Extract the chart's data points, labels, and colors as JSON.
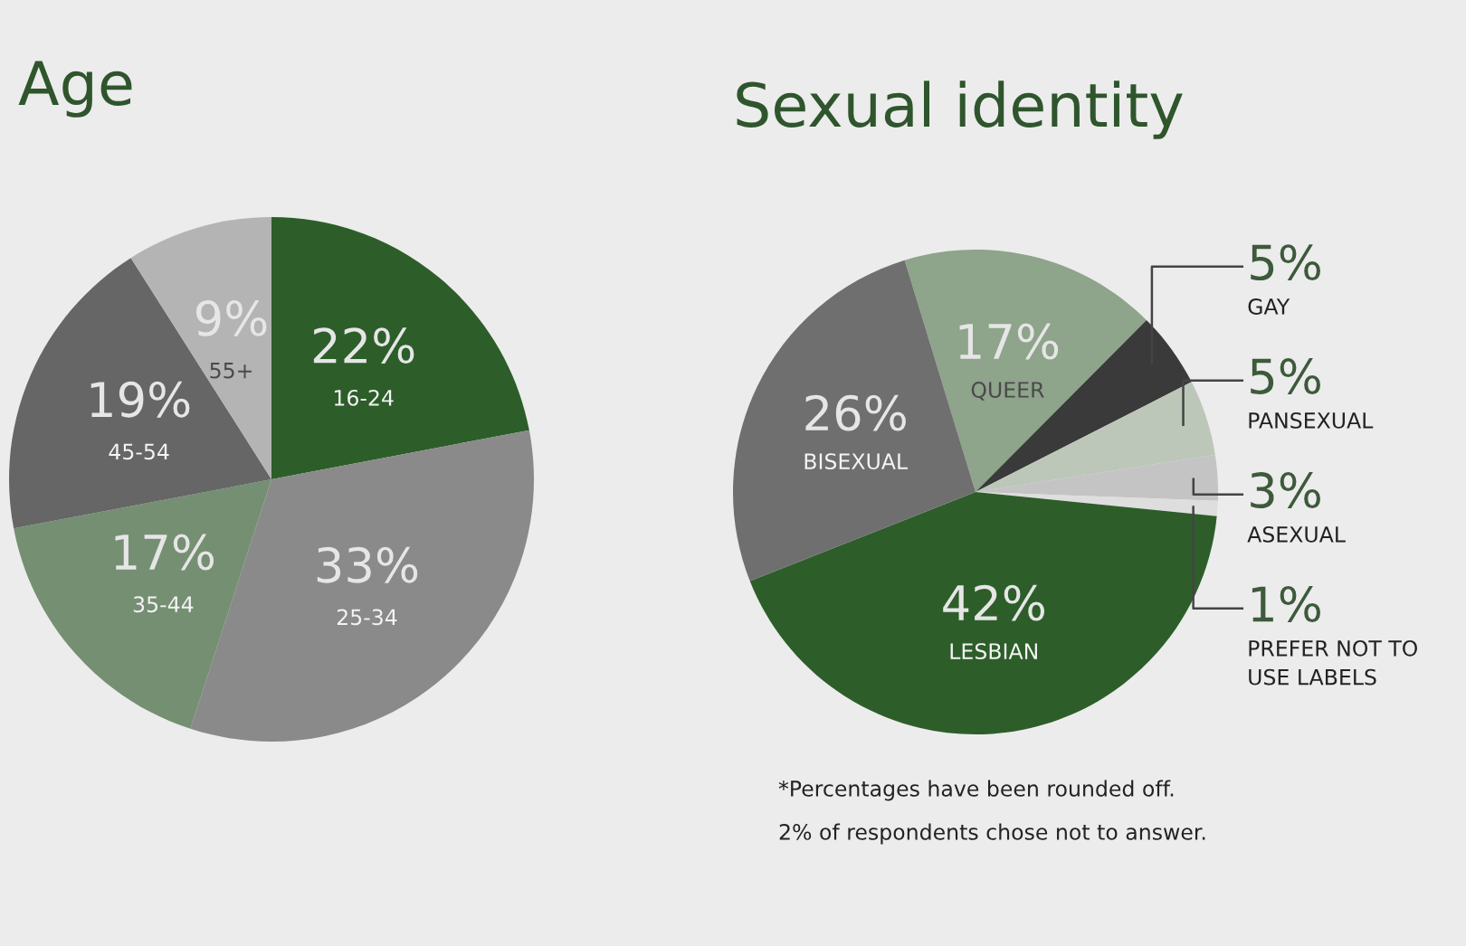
{
  "chart_data": [
    {
      "type": "pie",
      "title": "Age",
      "categories": [
        "16-24",
        "25-34",
        "35-44",
        "45-54",
        "55+"
      ],
      "values": [
        22,
        33,
        17,
        19,
        9
      ],
      "value_labels": [
        "22%",
        "33%",
        "17%",
        "19%",
        "9%"
      ],
      "colors": [
        "#2d5e2a",
        "#8a8a8a",
        "#758f73",
        "#666666",
        "#b4b4b4"
      ]
    },
    {
      "type": "pie",
      "title": "Sexual identity",
      "categories": [
        "QUEER",
        "GAY",
        "PANSEXUAL",
        "ASEXUAL",
        "PREFER NOT TO\nUSE LABELS",
        "LESBIAN",
        "BISEXUAL"
      ],
      "values": [
        17,
        5,
        5,
        3,
        1,
        42,
        26
      ],
      "value_labels": [
        "17%",
        "5%",
        "5%",
        "3%",
        "1%",
        "42%",
        "26%"
      ],
      "colors": [
        "#8ea48b",
        "#3a3a3a",
        "#bcc7ba",
        "#c4c4c4",
        "#dedede",
        "#2d5e2a",
        "#6f6f6f"
      ],
      "annotations": [
        "*Percentages have been rounded off.",
        "2% of respondents chose not to answer."
      ]
    }
  ]
}
